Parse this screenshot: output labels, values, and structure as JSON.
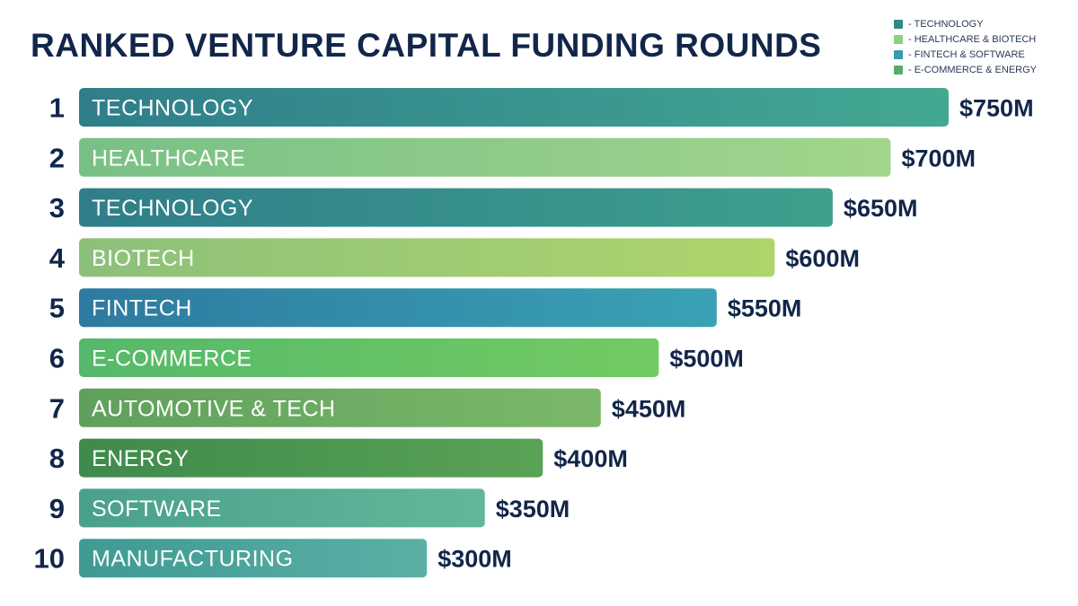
{
  "chart_data": {
    "type": "bar",
    "orientation": "horizontal",
    "title": "RANKED VENTURE CAPITAL FUNDING ROUNDS",
    "ranks": [
      "1",
      "2",
      "3",
      "4",
      "5",
      "6",
      "7",
      "8",
      "9",
      "10"
    ],
    "categories": [
      "TECHNOLOGY",
      "HEALTHCARE",
      "TECHNOLOGY",
      "BIOTECH",
      "FINTECH",
      "E-COMMERCE",
      "AUTOMOTIVE & TECH",
      "ENERGY",
      "SOFTWARE",
      "MANUFACTURING"
    ],
    "values": [
      750,
      700,
      650,
      600,
      550,
      500,
      450,
      400,
      350,
      300
    ],
    "value_labels": [
      "$750M",
      "$700M",
      "$650M",
      "$600M",
      "$550M",
      "$500M",
      "$450M",
      "$400M",
      "$350M",
      "$300M"
    ],
    "bar_colors": [
      [
        "#2f7e8a",
        "#43a892"
      ],
      [
        "#79c086",
        "#a2d58c"
      ],
      [
        "#2f7e8a",
        "#3fa08c"
      ],
      [
        "#8cc07a",
        "#b0d46c"
      ],
      [
        "#2e7aa0",
        "#3aa2b4"
      ],
      [
        "#55b86a",
        "#72cb62"
      ],
      [
        "#5fa05c",
        "#7bb86a"
      ],
      [
        "#3f8a4c",
        "#5aa255"
      ],
      [
        "#4aa08c",
        "#62b79a"
      ],
      [
        "#3f9a93",
        "#5ab0a5"
      ]
    ],
    "grid": false,
    "legend_position": "top-right",
    "legend": [
      {
        "label": "- TECHNOLOGY",
        "color": "#2f8a86"
      },
      {
        "label": "- HEALTHCARE & BIOTECH",
        "color": "#8ccf86"
      },
      {
        "label": "- FINTECH & SOFTWARE",
        "color": "#3a9ab0"
      },
      {
        "label": "- E-COMMERCE & ENERGY",
        "color": "#5aaa6a"
      }
    ],
    "xlim": [
      0,
      750
    ]
  }
}
